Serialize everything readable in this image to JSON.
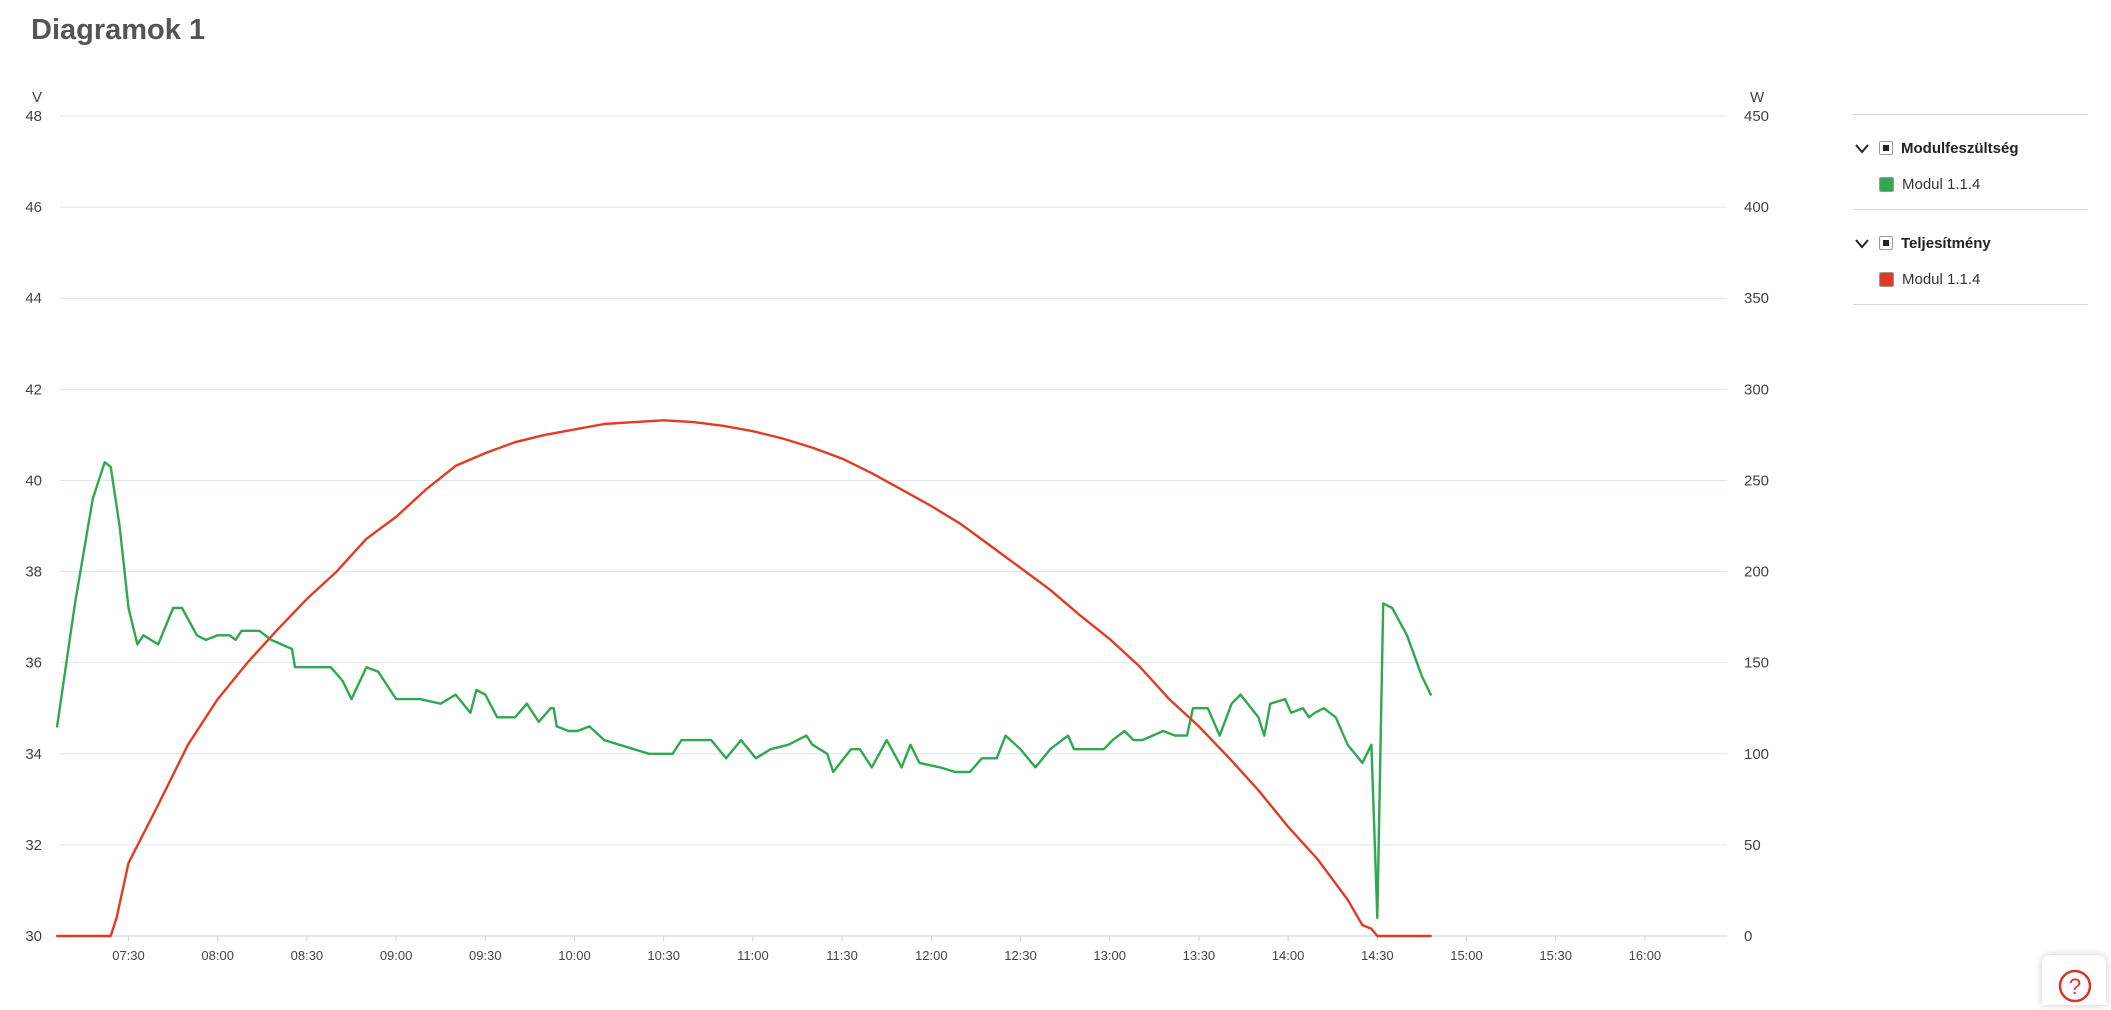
{
  "page": {
    "title": "Diagramok 1"
  },
  "legend": {
    "groups": [
      {
        "label": "Modulfeszültség",
        "items": [
          {
            "label": "Modul 1.1.4",
            "color": "#2fa84f"
          }
        ]
      },
      {
        "label": "Teljesítmény",
        "items": [
          {
            "label": "Modul 1.1.4",
            "color": "#e03c24"
          }
        ]
      }
    ]
  },
  "chart_data": {
    "type": "line",
    "title": "",
    "x_ticks": [
      "07:30",
      "08:00",
      "08:30",
      "09:00",
      "09:30",
      "10:00",
      "10:30",
      "11:00",
      "11:30",
      "12:00",
      "12:30",
      "13:00",
      "13:30",
      "14:00",
      "14:30",
      "15:00",
      "15:30",
      "16:00"
    ],
    "y_left": {
      "unit": "V",
      "range": [
        30,
        48
      ],
      "ticks": [
        "48",
        "46",
        "44",
        "42",
        "40",
        "38",
        "36",
        "34",
        "32",
        "30"
      ]
    },
    "y_right": {
      "unit": "W",
      "range": [
        0,
        450
      ],
      "ticks": [
        "450",
        "400",
        "350",
        "300",
        "250",
        "200",
        "150",
        "100",
        "50",
        "0"
      ]
    },
    "grid": true,
    "legend_position": "right",
    "series": [
      {
        "name": "Modul 1.1.4",
        "group": "Modulfeszültség",
        "axis": "left",
        "color": "#2fa84f",
        "points": [
          [
            "07:06",
            34.6
          ],
          [
            "07:12",
            37.3
          ],
          [
            "07:18",
            39.6
          ],
          [
            "07:22",
            40.4
          ],
          [
            "07:24",
            40.3
          ],
          [
            "07:27",
            39.0
          ],
          [
            "07:30",
            37.2
          ],
          [
            "07:33",
            36.4
          ],
          [
            "07:35",
            36.6
          ],
          [
            "07:40",
            36.4
          ],
          [
            "07:45",
            37.2
          ],
          [
            "07:48",
            37.2
          ],
          [
            "07:53",
            36.6
          ],
          [
            "07:56",
            36.5
          ],
          [
            "08:00",
            36.6
          ],
          [
            "08:04",
            36.6
          ],
          [
            "08:06",
            36.5
          ],
          [
            "08:08",
            36.7
          ],
          [
            "08:14",
            36.7
          ],
          [
            "08:18",
            36.5
          ],
          [
            "08:25",
            36.3
          ],
          [
            "08:26",
            35.9
          ],
          [
            "08:32",
            35.9
          ],
          [
            "08:38",
            35.9
          ],
          [
            "08:42",
            35.6
          ],
          [
            "08:45",
            35.2
          ],
          [
            "08:50",
            35.9
          ],
          [
            "08:54",
            35.8
          ],
          [
            "09:00",
            35.2
          ],
          [
            "09:08",
            35.2
          ],
          [
            "09:15",
            35.1
          ],
          [
            "09:20",
            35.3
          ],
          [
            "09:25",
            34.9
          ],
          [
            "09:27",
            35.4
          ],
          [
            "09:30",
            35.3
          ],
          [
            "09:34",
            34.8
          ],
          [
            "09:40",
            34.8
          ],
          [
            "09:44",
            35.1
          ],
          [
            "09:48",
            34.7
          ],
          [
            "09:52",
            35.0
          ],
          [
            "09:53",
            35.0
          ],
          [
            "09:54",
            34.6
          ],
          [
            "09:58",
            34.5
          ],
          [
            "10:01",
            34.5
          ],
          [
            "10:05",
            34.6
          ],
          [
            "10:10",
            34.3
          ],
          [
            "10:20",
            34.1
          ],
          [
            "10:25",
            34.0
          ],
          [
            "10:33",
            34.0
          ],
          [
            "10:36",
            34.3
          ],
          [
            "10:46",
            34.3
          ],
          [
            "10:51",
            33.9
          ],
          [
            "10:56",
            34.3
          ],
          [
            "11:01",
            33.9
          ],
          [
            "11:06",
            34.1
          ],
          [
            "11:12",
            34.2
          ],
          [
            "11:18",
            34.4
          ],
          [
            "11:20",
            34.2
          ],
          [
            "11:25",
            34.0
          ],
          [
            "11:27",
            33.6
          ],
          [
            "11:33",
            34.1
          ],
          [
            "11:36",
            34.1
          ],
          [
            "11:40",
            33.7
          ],
          [
            "11:45",
            34.3
          ],
          [
            "11:50",
            33.7
          ],
          [
            "11:53",
            34.2
          ],
          [
            "11:56",
            33.8
          ],
          [
            "12:03",
            33.7
          ],
          [
            "12:08",
            33.6
          ],
          [
            "12:13",
            33.6
          ],
          [
            "12:17",
            33.9
          ],
          [
            "12:22",
            33.9
          ],
          [
            "12:25",
            34.4
          ],
          [
            "12:30",
            34.1
          ],
          [
            "12:35",
            33.7
          ],
          [
            "12:40",
            34.1
          ],
          [
            "12:46",
            34.4
          ],
          [
            "12:48",
            34.1
          ],
          [
            "12:52",
            34.1
          ],
          [
            "12:58",
            34.1
          ],
          [
            "13:01",
            34.3
          ],
          [
            "13:05",
            34.5
          ],
          [
            "13:08",
            34.3
          ],
          [
            "13:11",
            34.3
          ],
          [
            "13:18",
            34.5
          ],
          [
            "13:22",
            34.4
          ],
          [
            "13:26",
            34.4
          ],
          [
            "13:28",
            35.0
          ],
          [
            "13:33",
            35.0
          ],
          [
            "13:37",
            34.4
          ],
          [
            "13:41",
            35.1
          ],
          [
            "13:44",
            35.3
          ],
          [
            "13:50",
            34.8
          ],
          [
            "13:52",
            34.4
          ],
          [
            "13:54",
            35.1
          ],
          [
            "13:59",
            35.2
          ],
          [
            "14:01",
            34.9
          ],
          [
            "14:05",
            35.0
          ],
          [
            "14:07",
            34.8
          ],
          [
            "14:09",
            34.9
          ],
          [
            "14:12",
            35.0
          ],
          [
            "14:16",
            34.8
          ],
          [
            "14:20",
            34.2
          ],
          [
            "14:25",
            33.8
          ],
          [
            "14:28",
            34.2
          ],
          [
            "14:30",
            30.4
          ],
          [
            "14:32",
            37.3
          ],
          [
            "14:35",
            37.2
          ],
          [
            "14:40",
            36.6
          ],
          [
            "14:45",
            35.7
          ],
          [
            "14:48",
            35.3
          ]
        ]
      },
      {
        "name": "Modul 1.1.4",
        "group": "Teljesítmény",
        "axis": "right",
        "color": "#e03c24",
        "points": [
          [
            "07:06",
            0
          ],
          [
            "07:20",
            0
          ],
          [
            "07:24",
            0
          ],
          [
            "07:26",
            10
          ],
          [
            "07:30",
            40
          ],
          [
            "07:40",
            72
          ],
          [
            "07:50",
            105
          ],
          [
            "08:00",
            130
          ],
          [
            "08:10",
            150
          ],
          [
            "08:20",
            168
          ],
          [
            "08:30",
            185
          ],
          [
            "08:40",
            200
          ],
          [
            "08:50",
            218
          ],
          [
            "09:00",
            230
          ],
          [
            "09:10",
            245
          ],
          [
            "09:20",
            258
          ],
          [
            "09:30",
            265
          ],
          [
            "09:40",
            271
          ],
          [
            "09:50",
            275
          ],
          [
            "10:00",
            278
          ],
          [
            "10:10",
            281
          ],
          [
            "10:20",
            282
          ],
          [
            "10:30",
            283
          ],
          [
            "10:40",
            282
          ],
          [
            "10:50",
            280
          ],
          [
            "11:00",
            277
          ],
          [
            "11:10",
            273
          ],
          [
            "11:20",
            268
          ],
          [
            "11:30",
            262
          ],
          [
            "11:40",
            254
          ],
          [
            "11:50",
            245
          ],
          [
            "12:00",
            236
          ],
          [
            "12:10",
            226
          ],
          [
            "12:20",
            214
          ],
          [
            "12:30",
            202
          ],
          [
            "12:40",
            190
          ],
          [
            "12:50",
            176
          ],
          [
            "13:00",
            163
          ],
          [
            "13:10",
            148
          ],
          [
            "13:20",
            130
          ],
          [
            "13:30",
            115
          ],
          [
            "13:40",
            98
          ],
          [
            "13:50",
            80
          ],
          [
            "14:00",
            60
          ],
          [
            "14:10",
            42
          ],
          [
            "14:20",
            20
          ],
          [
            "14:25",
            6
          ],
          [
            "14:28",
            4
          ],
          [
            "14:30",
            0
          ],
          [
            "14:48",
            0
          ]
        ]
      }
    ]
  }
}
